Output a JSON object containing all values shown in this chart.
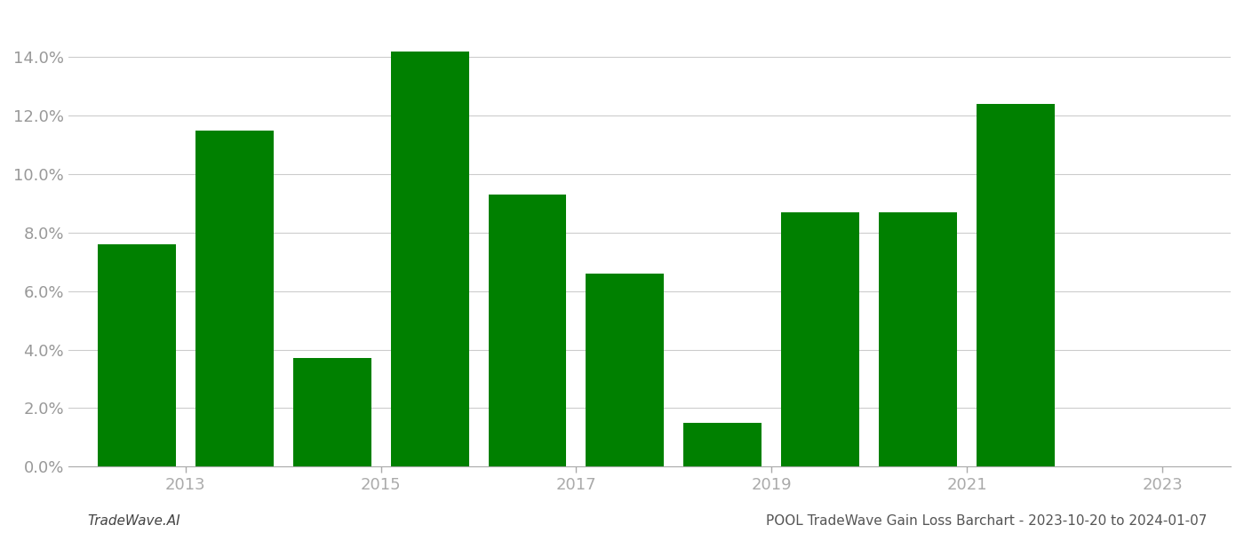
{
  "bar_positions": [
    1,
    2,
    3,
    4,
    5,
    6,
    7,
    8,
    9,
    10
  ],
  "values": [
    0.076,
    0.115,
    0.037,
    0.142,
    0.093,
    0.066,
    0.015,
    0.087,
    0.087,
    0.124
  ],
  "bar_color": "#008000",
  "background_color": "#ffffff",
  "grid_color": "#cccccc",
  "footer_left": "TradeWave.AI",
  "footer_right": "POOL TradeWave Gain Loss Barchart - 2023-10-20 to 2024-01-07",
  "ylim": [
    0,
    0.155
  ],
  "yticks": [
    0.0,
    0.02,
    0.04,
    0.06,
    0.08,
    0.1,
    0.12,
    0.14
  ],
  "xtick_labels": [
    "2013",
    "2015",
    "2017",
    "2019",
    "2021",
    "2023"
  ],
  "xtick_positions": [
    1.5,
    3.5,
    5.5,
    7.5,
    9.5,
    11.5
  ],
  "xlim": [
    0.3,
    12.2
  ],
  "bar_width": 0.8,
  "tick_label_color": "#999999",
  "footer_fontsize": 11,
  "tick_fontsize": 13
}
